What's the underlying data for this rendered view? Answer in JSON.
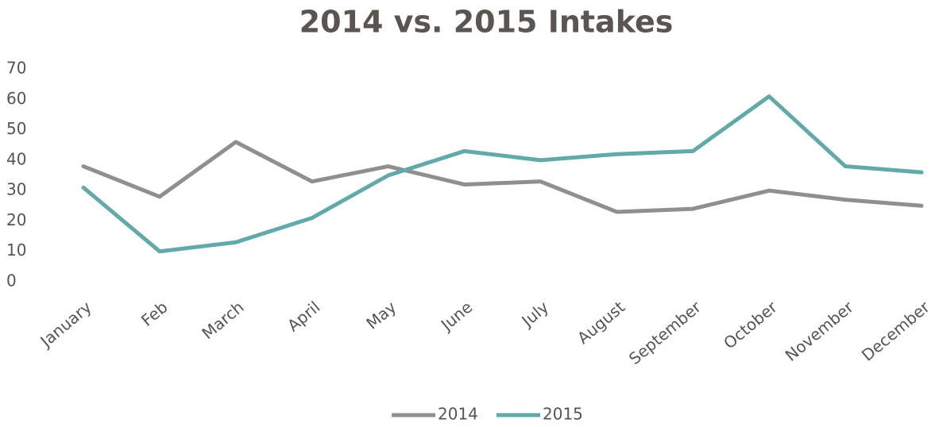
{
  "chart_data": {
    "type": "line",
    "title": "2014 vs. 2015 Intakes",
    "categories": [
      "January",
      "Feb",
      "March",
      "April",
      "May",
      "June",
      "July",
      "August",
      "September",
      "October",
      "November",
      "December"
    ],
    "series": [
      {
        "name": "2014",
        "color": "#8f8f8f",
        "values": [
          38,
          28,
          46,
          33,
          38,
          32,
          33,
          23,
          24,
          30,
          27,
          25
        ]
      },
      {
        "name": "2015",
        "color": "#62aaa9",
        "values": [
          31,
          10,
          13,
          21,
          35,
          43,
          40,
          42,
          43,
          61,
          38,
          36
        ]
      }
    ],
    "ylim": [
      0,
      70
    ],
    "yticks": [
      0,
      10,
      20,
      30,
      40,
      50,
      60,
      70
    ],
    "grid": false,
    "legend": "bottom"
  }
}
